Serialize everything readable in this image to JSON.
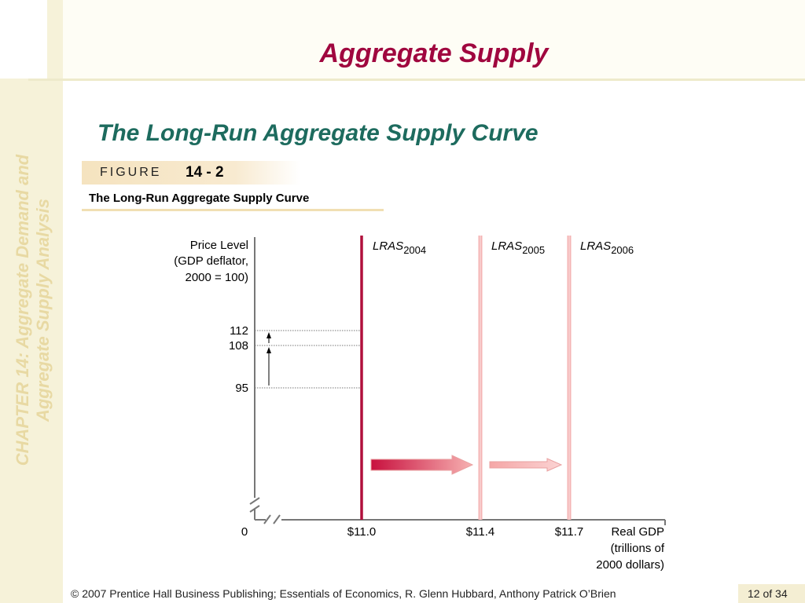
{
  "slide": {
    "title": "Aggregate Supply",
    "subtitle": "The Long-Run Aggregate Supply Curve",
    "sidebar_text": "CHAPTER 14:  Aggregate Demand and\nAggregate Supply Analysis",
    "figure_label": "FIGURE",
    "figure_number": "14 - 2",
    "figure_caption": "The Long-Run Aggregate Supply Curve"
  },
  "footer": {
    "copyright": "© 2007 Prentice Hall Business Publishing; Essentials of Economics,  R. Glenn Hubbard, Anthony Patrick O’Brien",
    "page": "12 of 34"
  },
  "colors": {
    "title": "#a0073f",
    "subtitle": "#1d6b5e",
    "lras_2004": "#b0103c",
    "lras_later": "#f4b4b4",
    "sidebar": "#f6f2d9"
  },
  "chart_data": {
    "type": "line",
    "ylabel": [
      "Price Level",
      "(GDP deflator,",
      "2000 = 100)"
    ],
    "xlabel": [
      "Real GDP",
      "(trillions of",
      "2000 dollars)"
    ],
    "origin_label": "0",
    "y_ticks": [
      {
        "value": 112,
        "label": "112"
      },
      {
        "value": 108,
        "label": "108"
      },
      {
        "value": 95,
        "label": "95"
      }
    ],
    "x_ticks": [
      {
        "value": 11.0,
        "label": "$11.0"
      },
      {
        "value": 11.4,
        "label": "$11.4"
      },
      {
        "value": 11.7,
        "label": "$11.7"
      }
    ],
    "series": [
      {
        "name": "LRAS",
        "subscript": "2004",
        "x": 11.0,
        "style": "solid-dark"
      },
      {
        "name": "LRAS",
        "subscript": "2005",
        "x": 11.4,
        "style": "light"
      },
      {
        "name": "LRAS",
        "subscript": "2006",
        "x": 11.7,
        "style": "light"
      }
    ],
    "price_levels": [
      {
        "year": "2004",
        "value": 95
      },
      {
        "year": "2005",
        "value": 108
      },
      {
        "year": "2006",
        "value": 112
      }
    ],
    "shift_arrows": [
      {
        "from": 11.0,
        "to": 11.4
      },
      {
        "from": 11.4,
        "to": 11.7
      }
    ],
    "axis_breaks": true,
    "grid": false
  }
}
